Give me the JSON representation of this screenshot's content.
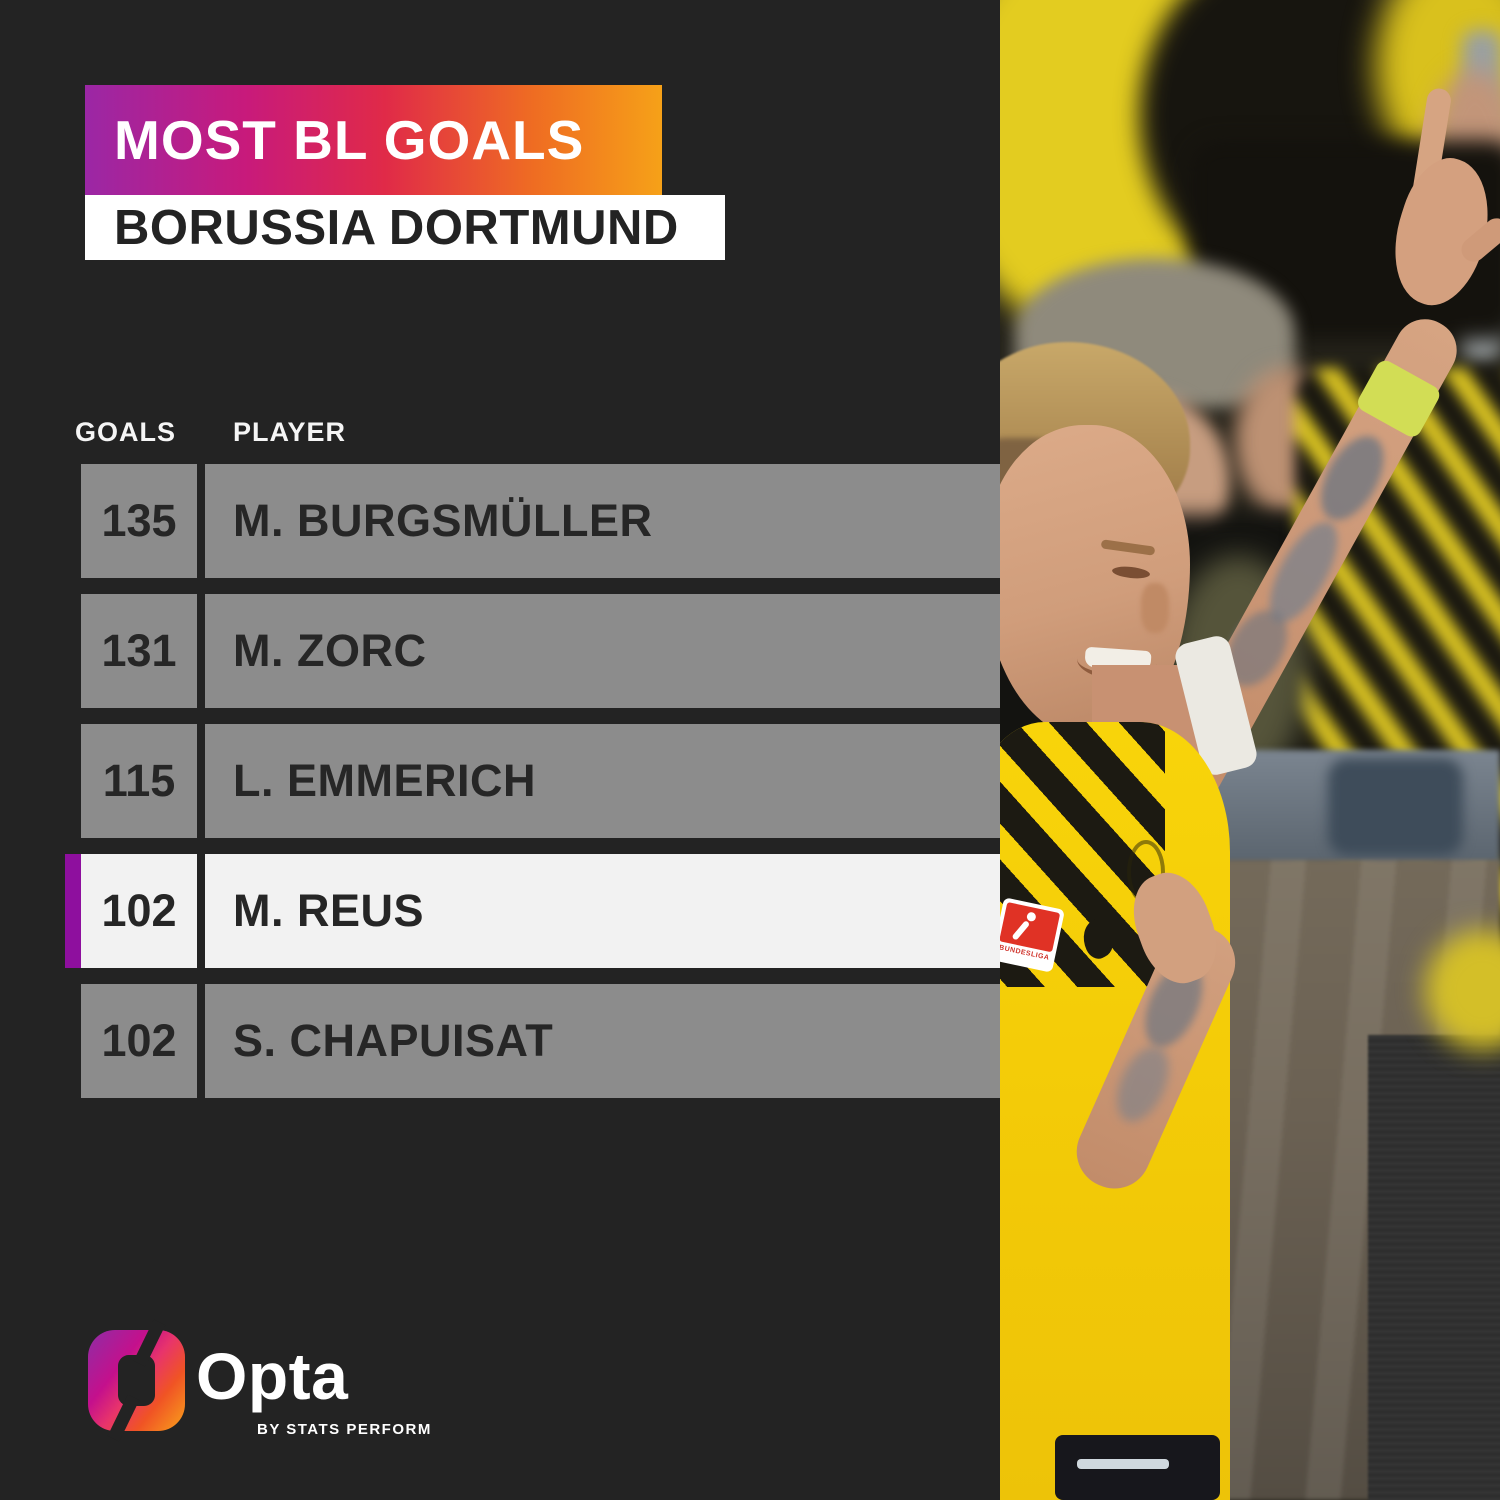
{
  "header": {
    "title": "MOST BL GOALS",
    "subtitle": "BORUSSIA DORTMUND"
  },
  "table": {
    "goals_header": "GOALS",
    "player_header": "PLAYER",
    "rows": [
      {
        "goals": "135",
        "player": "M. BURGSMÜLLER",
        "highlighted": false
      },
      {
        "goals": "131",
        "player": "M. ZORC",
        "highlighted": false
      },
      {
        "goals": "115",
        "player": "L. EMMERICH",
        "highlighted": false
      },
      {
        "goals": "102",
        "player": "M. REUS",
        "highlighted": true
      },
      {
        "goals": "102",
        "player": "S. CHAPUISAT",
        "highlighted": false
      }
    ]
  },
  "footer": {
    "brand": "Opta",
    "tagline": "BY STATS PERFORM"
  },
  "photo": {
    "bundesliga_patch_text": "BUNDESLIGA"
  },
  "colors": {
    "background": "#232323",
    "banner_gradient": [
      "#9B27A5",
      "#C81A7B",
      "#E02A48",
      "#EF6D22",
      "#F6A118"
    ],
    "row_gray": "#8C8C8C",
    "row_highlight": "#F2F2F2",
    "highlight_accent": "#8E0F9E",
    "row_text": "#262626",
    "header_text": "#FFFFFF",
    "bvb_yellow": "#F5CF06",
    "wristband_yellow": "#D2DD55"
  }
}
